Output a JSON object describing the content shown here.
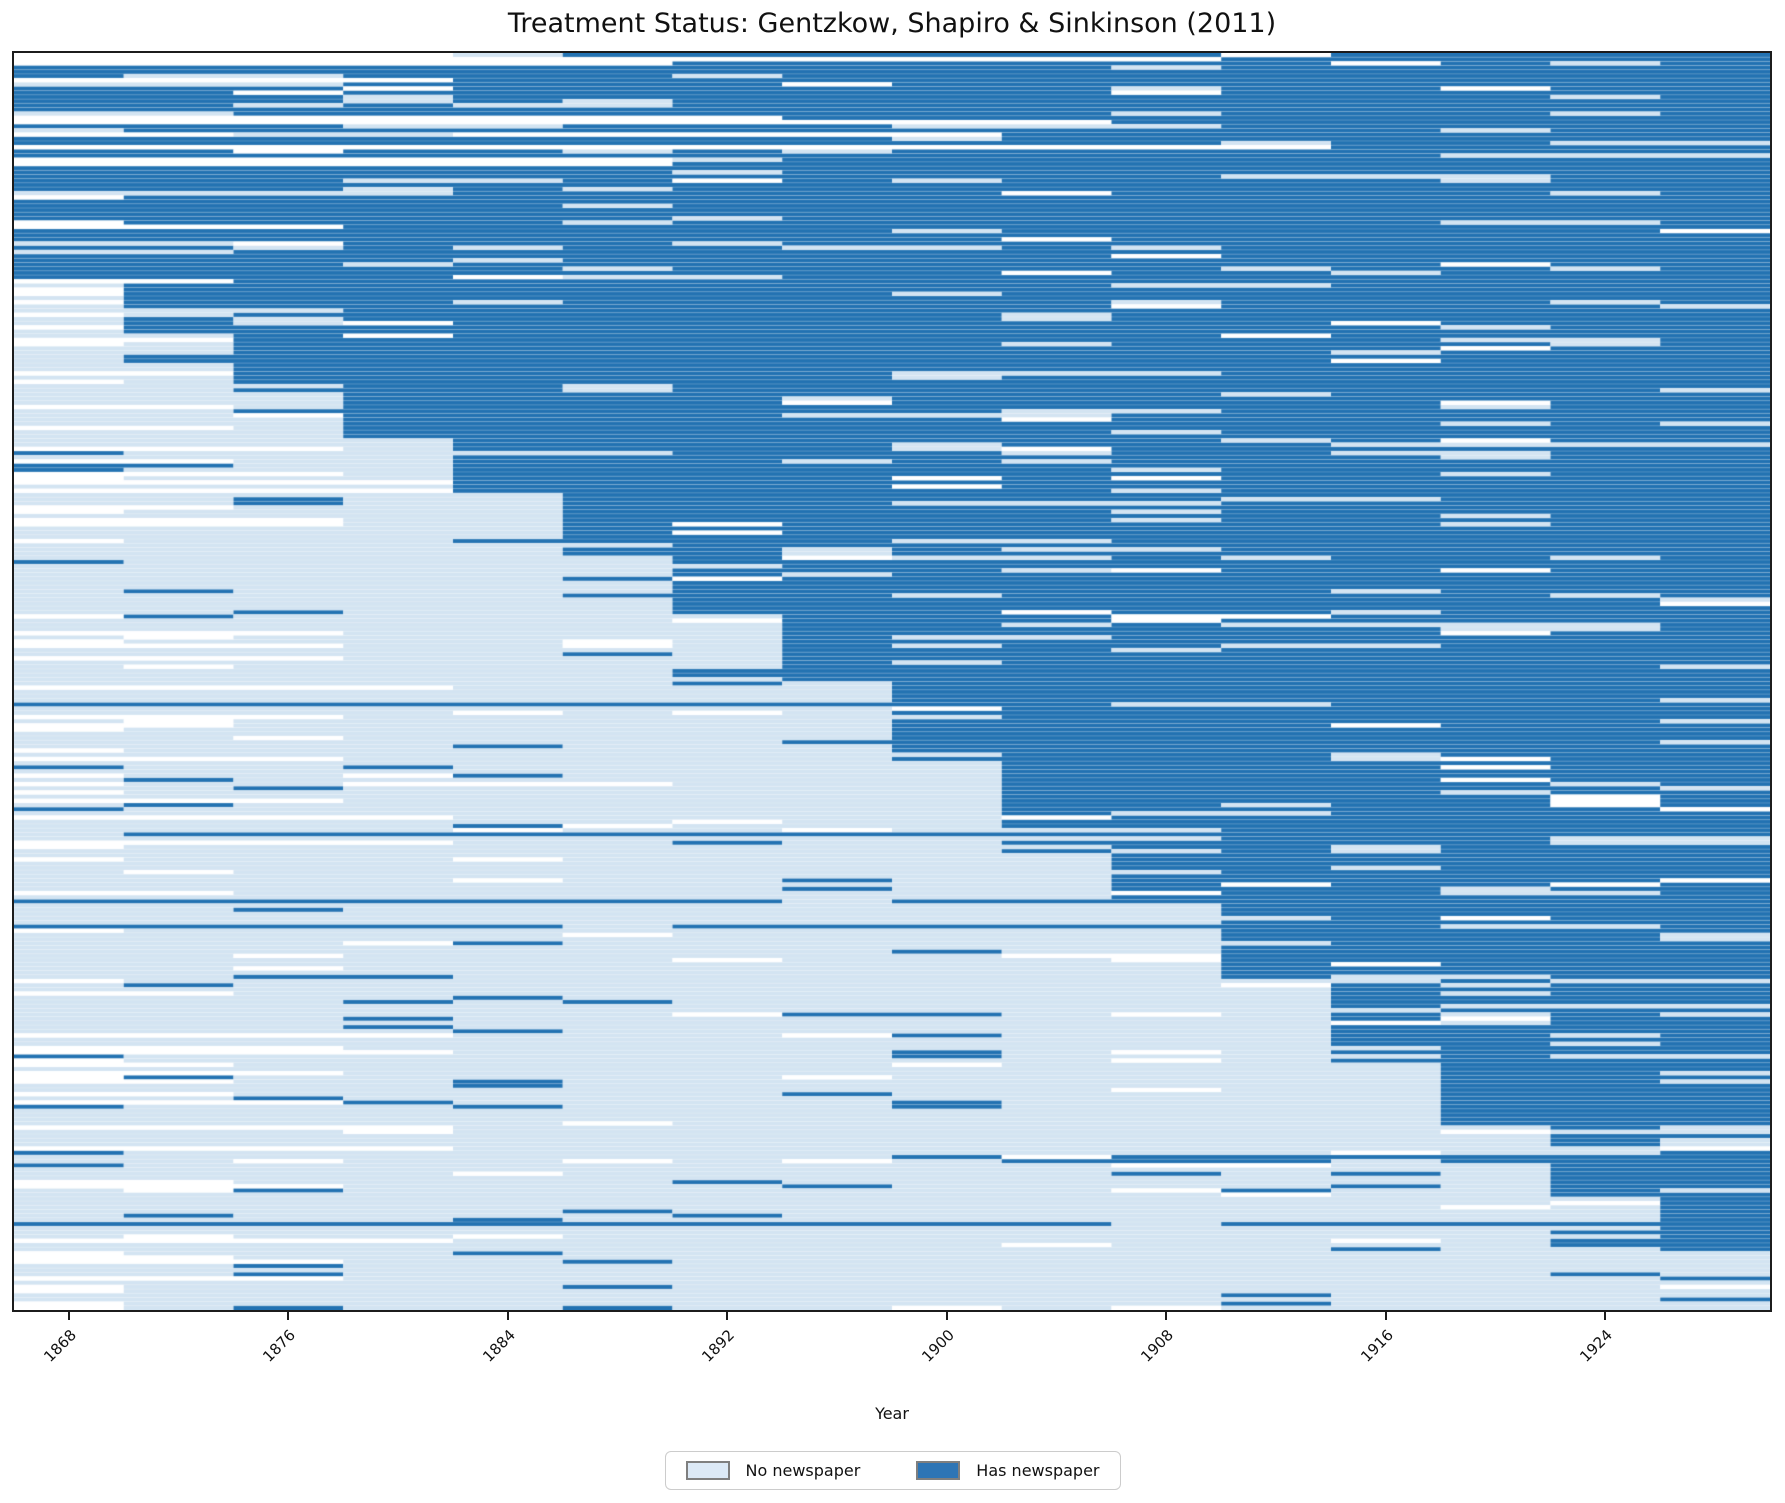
{
  "figure": {
    "title": "Treatment Status: Gentzkow, Shapiro & Sinkinson (2011)",
    "xlabel": "Year"
  },
  "chart_data": {
    "type": "heatmap",
    "title": "Treatment Status: Gentzkow, Shapiro & Sinkinson (2011)",
    "xlabel": "Year",
    "ylabel": "",
    "x_domain": [
      1866,
      1930
    ],
    "x_ticks": [
      1868,
      1876,
      1884,
      1892,
      1900,
      1908,
      1916,
      1924
    ],
    "tick_rotation_deg": 45,
    "column_years": [
      1868,
      1872,
      1876,
      1880,
      1884,
      1888,
      1892,
      1896,
      1900,
      1904,
      1908,
      1912,
      1916,
      1920,
      1924,
      1928
    ],
    "column_bin_width_years": 4,
    "n_rows": 300,
    "rows_are": "county units sorted by first year with a newspaper",
    "cell_states": {
      "0": "missing (white)",
      "1": "no newspaper",
      "2": "has newspaper"
    },
    "colors": {
      "missing": "#ffffff",
      "no_newspaper": "#d3e4f2",
      "has_newspaper": "#2272b2",
      "row_band": "rgba(255,255,255,0.24)",
      "spine": "#1c1c1c"
    },
    "legend": [
      {
        "label": "No newspaper",
        "color": "#dce9f6",
        "edge": "#7f7f7f"
      },
      {
        "label": "Has newspaper",
        "color": "#2e75b5",
        "edge": "#7f7f7f"
      }
    ],
    "legend_position": "bottom center",
    "row_groups": [
      {
        "count": 55,
        "first_has_year": 1868,
        "white_prefix_p": 0.13,
        "white_prefix_max": 12
      },
      {
        "count": 12,
        "first_has_year": 1872
      },
      {
        "count": 12,
        "first_has_year": 1876
      },
      {
        "count": 13,
        "first_has_year": 1880
      },
      {
        "count": 13,
        "first_has_year": 1884
      },
      {
        "count": 14,
        "first_has_year": 1888
      },
      {
        "count": 15,
        "first_has_year": 1892
      },
      {
        "count": 16,
        "first_has_year": 1896
      },
      {
        "count": 17,
        "first_has_year": 1900
      },
      {
        "count": 18,
        "first_has_year": 1904
      },
      {
        "count": 18,
        "first_has_year": 1908
      },
      {
        "count": 18,
        "first_has_year": 1912
      },
      {
        "count": 18,
        "first_has_year": 1916
      },
      {
        "count": 17,
        "first_has_year": 1920
      },
      {
        "count": 16,
        "first_has_year": 1924
      },
      {
        "count": 14,
        "first_has_year": 1928
      },
      {
        "count": 14,
        "first_has_year": null,
        "white_prefix_p": 0.45,
        "white_prefix_max": 3
      }
    ],
    "noise": {
      "seed": 20110411,
      "white_prefix_p": 0.22,
      "white_prefix_max": 4,
      "light_prefix_p_treated": 0.08,
      "early_adopter_p": 0.05,
      "exit_p": 0.12,
      "pre_dark_p": 0.045,
      "pre_white_p": 0.03,
      "post_light_p": 0.055,
      "post_white_p": 0.022
    }
  }
}
